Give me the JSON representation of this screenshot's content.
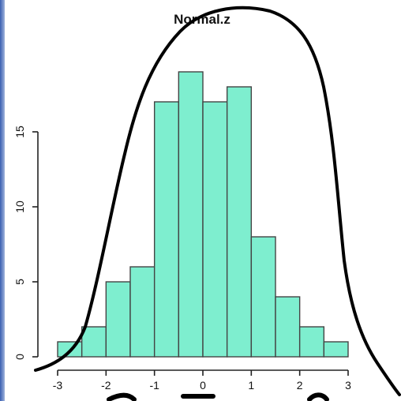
{
  "chart_data": {
    "type": "bar",
    "title": "Normal.z",
    "xlabel": "",
    "ylabel": "",
    "xlim": [
      -3,
      3
    ],
    "ylim": [
      0,
      20
    ],
    "bin_edges": [
      -3,
      -2.5,
      -2,
      -1.5,
      -1,
      -0.5,
      0,
      0.5,
      1,
      1.5,
      2,
      2.5,
      3
    ],
    "values": [
      1,
      2,
      5,
      6,
      17,
      19,
      17,
      18,
      8,
      4,
      2,
      1
    ],
    "x_ticks": [
      "-3",
      "-2",
      "-1",
      "0",
      "1",
      "2",
      "3"
    ],
    "y_ticks": [
      "0",
      "5",
      "10",
      "15"
    ],
    "grid": false,
    "overlay": "hand-drawn bell curve"
  },
  "colors": {
    "bar_fill": "#7eeecf",
    "bar_stroke": "#444444",
    "curve": "#000000"
  }
}
